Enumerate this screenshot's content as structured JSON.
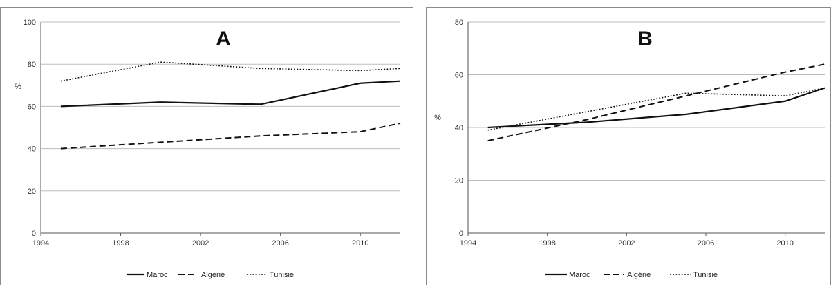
{
  "chart_data": [
    {
      "type": "line",
      "title": "A",
      "ylabel": "%",
      "xlim": [
        1994,
        2012
      ],
      "ylim": [
        0,
        100
      ],
      "xticks": [
        1994,
        1998,
        2002,
        2006,
        2010
      ],
      "yticks": [
        0,
        20,
        40,
        60,
        80,
        100
      ],
      "grid": true,
      "legend_position": "bottom",
      "series": [
        {
          "name": "Maroc",
          "style": "solid",
          "x": [
            1995,
            2000,
            2005,
            2010,
            2012
          ],
          "y": [
            60,
            62,
            61,
            71,
            72
          ]
        },
        {
          "name": "Algérie",
          "style": "dashed",
          "x": [
            1995,
            2000,
            2005,
            2010,
            2012
          ],
          "y": [
            40,
            43,
            46,
            48,
            52
          ]
        },
        {
          "name": "Tunisie",
          "style": "dotted",
          "x": [
            1995,
            2000,
            2005,
            2010,
            2012
          ],
          "y": [
            72,
            81,
            78,
            77,
            78
          ]
        }
      ]
    },
    {
      "type": "line",
      "title": "B",
      "ylabel": "%",
      "xlim": [
        1994,
        2012
      ],
      "ylim": [
        0,
        80
      ],
      "xticks": [
        1994,
        1998,
        2002,
        2006,
        2010
      ],
      "yticks": [
        0,
        20,
        40,
        60,
        80
      ],
      "grid": true,
      "legend_position": "bottom",
      "series": [
        {
          "name": "Maroc",
          "style": "solid",
          "x": [
            1995,
            2000,
            2005,
            2010,
            2012
          ],
          "y": [
            40,
            42,
            45,
            50,
            55
          ]
        },
        {
          "name": "Algérie",
          "style": "dashed",
          "x": [
            1995,
            2000,
            2005,
            2010,
            2012
          ],
          "y": [
            35,
            43,
            52,
            61,
            64
          ]
        },
        {
          "name": "Tunisie",
          "style": "dotted",
          "x": [
            1995,
            2000,
            2005,
            2010,
            2012
          ],
          "y": [
            39,
            46,
            53,
            52,
            55
          ]
        }
      ]
    }
  ]
}
